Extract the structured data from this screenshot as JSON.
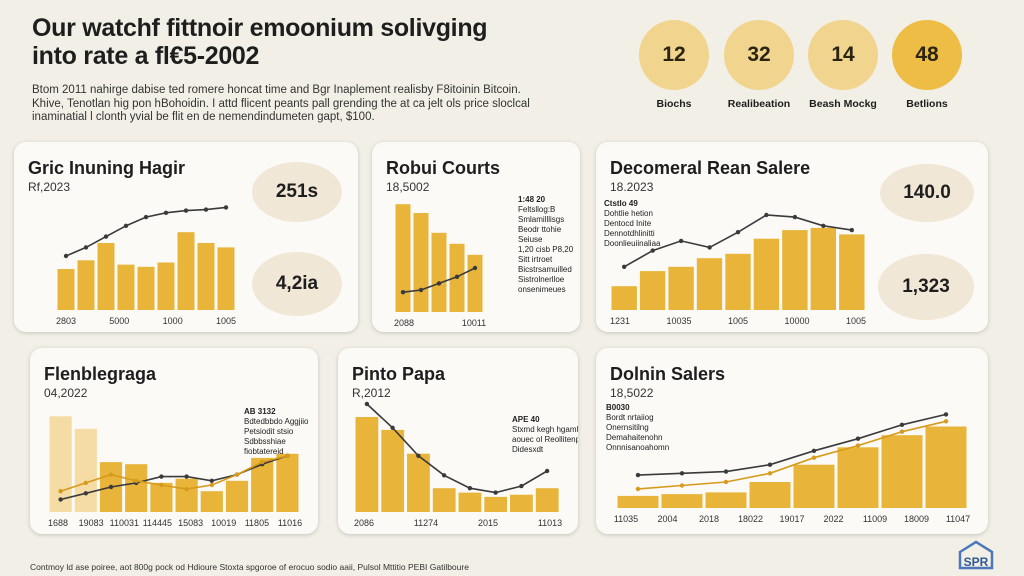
{
  "headline": {
    "line1": "Our watchf fittnoir emoonium solivging",
    "line2": "into rate a fl€5-2002"
  },
  "intro": {
    "line1": "Btom 2011 nahirge dabise ted romere honcat time and Bgr Inaplement realisby F8itoinin Bitcoin.",
    "line2": "Khive, Tenotlan hig pon hBohoidin. I attd flicent peants pall grending the at ca jelt ols price sloclcal",
    "line3": "inaminatial l clonth yvial be flit en de nemendindumeten gapt, $100."
  },
  "stats": [
    {
      "value": "12",
      "label": "Biochs",
      "color": "#f1d58f"
    },
    {
      "value": "32",
      "label": "Realibeation",
      "color": "#f1d58f"
    },
    {
      "value": "14",
      "label": "Beash Mockg",
      "color": "#f1d58f"
    },
    {
      "value": "48",
      "label": "Betlions",
      "color": "#eebd45"
    }
  ],
  "colors": {
    "bar": "#e8b53a",
    "bar_light": "#f5dca4",
    "line_dark": "#3a3a3a",
    "line_gold": "#d89a1c",
    "background": "#f2efe6"
  },
  "panels": [
    {
      "title": "Gric Inuning Hagir",
      "subtitle": "Rf,2023",
      "badges": [
        "251s",
        "4,2ia"
      ],
      "annotation": [],
      "chart_data": {
        "type": "bar",
        "categories": [
          "c1",
          "c2",
          "c3",
          "c4",
          "c5",
          "c6",
          "c7",
          "c8",
          "c9"
        ],
        "values": [
          38,
          46,
          62,
          42,
          40,
          44,
          72,
          62,
          58
        ],
        "line": [
          50,
          58,
          68,
          78,
          86,
          90,
          92,
          93,
          95
        ],
        "tick_labels": [
          "2803",
          "5000",
          "1000",
          "1005"
        ],
        "ylim": [
          0,
          100
        ]
      }
    },
    {
      "title": "Robui Courts",
      "subtitle": "18,5002",
      "badges": [],
      "annotation": [
        "1:48 20",
        "Feltsllog:B",
        "Smlamilllisgs",
        "Beodr ttohie",
        "Seiuse",
        "1,20 cisb P8,20",
        "Sitt irtroet",
        "Bicstrsamuilled",
        "Sistrolnerlloe",
        "onsenimeues"
      ],
      "chart_data": {
        "type": "bar",
        "categories": [
          "c1",
          "c2",
          "c3",
          "c4",
          "c5"
        ],
        "values": [
          98,
          90,
          72,
          62,
          52
        ],
        "line": [
          18,
          20,
          26,
          32,
          40
        ],
        "tick_labels": [
          "2088",
          "10011"
        ],
        "ylim": [
          0,
          100
        ]
      }
    },
    {
      "title": "Decomeral Rean Salere",
      "subtitle": "18.2023",
      "badges": [
        "140.0",
        "1,323"
      ],
      "annotation": [
        "Ctstlo 49",
        "Dohtlie hetion",
        "Dentocd Inite",
        "Dennotdhlinitti",
        "Doonlieuiinaliaa"
      ],
      "chart_data": {
        "type": "bar",
        "categories": [
          "c1",
          "c2",
          "c3",
          "c4",
          "c5",
          "c6",
          "c7",
          "c8",
          "c9"
        ],
        "values": [
          22,
          36,
          40,
          48,
          52,
          66,
          74,
          76,
          70
        ],
        "line": [
          40,
          55,
          64,
          58,
          72,
          88,
          86,
          78,
          74
        ],
        "tick_labels": [
          "1231",
          "10035",
          "1005",
          "10000",
          "1005"
        ],
        "ylim": [
          0,
          100
        ]
      }
    },
    {
      "title": "Flenblegraga",
      "subtitle": "04,2022",
      "badges": [],
      "annotation": [
        "AB 3132",
        "Bdtedbbdo Aggjiio",
        "Petsiodit stsio",
        "Sdbbsshiae",
        "fiobtatereid"
      ],
      "chart_data": {
        "type": "bar",
        "categories": [
          "c1",
          "c2",
          "c3",
          "c4",
          "c5",
          "c6",
          "c7",
          "c8",
          "c9",
          "c10"
        ],
        "values": [
          92,
          80,
          48,
          46,
          28,
          32,
          20,
          30,
          52,
          56
        ],
        "line": [
          12,
          18,
          24,
          28,
          34,
          34,
          30,
          36,
          46,
          54
        ],
        "line2": [
          20,
          28,
          36,
          30,
          26,
          22,
          26,
          36,
          48,
          54
        ],
        "tick_labels": [
          "1688",
          "19083",
          "110031",
          "114445",
          "15083",
          "10019",
          "11805",
          "11016"
        ],
        "ylim": [
          0,
          100
        ]
      }
    },
    {
      "title": "Pinto Papa",
      "subtitle": "R,2012",
      "badges": [],
      "annotation": [
        "APE 40",
        "Stxmd kegh hgaml",
        "aouec ol Reollitenp",
        "Didesxdt"
      ],
      "chart_data": {
        "type": "bar",
        "categories": [
          "c1",
          "c2",
          "c3",
          "c4",
          "c5",
          "c6",
          "c7",
          "c8"
        ],
        "values": [
          88,
          76,
          54,
          22,
          18,
          14,
          16,
          22
        ],
        "line": [
          100,
          78,
          52,
          34,
          22,
          18,
          24,
          38
        ],
        "tick_labels": [
          "2086",
          "11274",
          "2015",
          "11013"
        ],
        "ylim": [
          0,
          100
        ]
      }
    },
    {
      "title": "Dolnin Salers",
      "subtitle": "18,5022",
      "badges": [],
      "annotation": [
        "B0030",
        "Bordt nrtaiiog",
        "Onernsitilng",
        "Demahaitenohn",
        "Onnnisanoahomn"
      ],
      "chart_data": {
        "type": "bar",
        "categories": [
          "c1",
          "c2",
          "c3",
          "c4",
          "c5",
          "c6",
          "c7",
          "c8"
        ],
        "values": [
          14,
          16,
          18,
          30,
          50,
          70,
          84,
          94
        ],
        "line": [
          38,
          40,
          42,
          50,
          66,
          80,
          96,
          108
        ],
        "line2": [
          22,
          26,
          30,
          40,
          58,
          72,
          88,
          100
        ],
        "tick_labels": [
          "11035",
          "2004",
          "2018",
          "18022",
          "19017",
          "2022",
          "11009",
          "18009",
          "11047"
        ],
        "ylim": [
          0,
          120
        ]
      }
    }
  ],
  "footer": {
    "text": "Contmoy ld ase poiree, aot 800g pock od Hdioure Stoxta spgoroe of erocuo sodio aaii, Pulsol Mttitio PEBI Gatilboure"
  },
  "logo": {
    "text": "SPR"
  }
}
